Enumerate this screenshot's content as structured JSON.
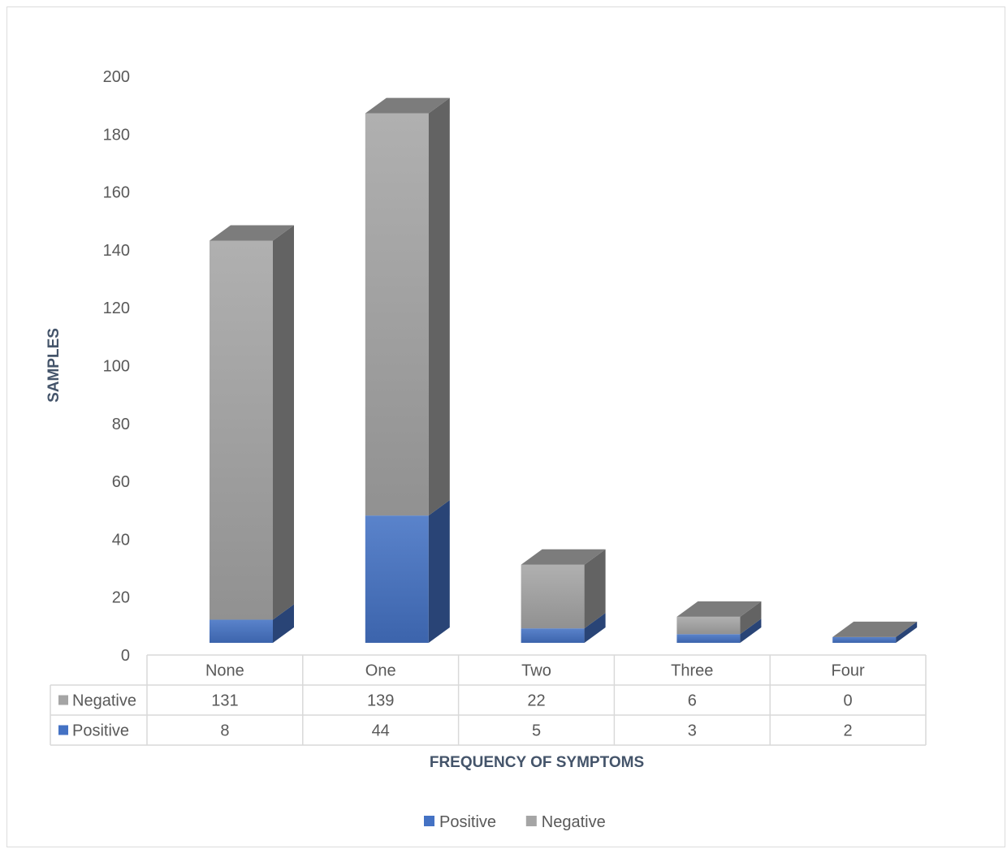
{
  "chart_data": {
    "type": "bar",
    "stacked": true,
    "style": "3d-column",
    "categories": [
      "None",
      "One",
      "Two",
      "Three",
      "Four"
    ],
    "series": [
      {
        "name": "Positive",
        "values": [
          8,
          44,
          5,
          3,
          2
        ],
        "color": "#4472c4"
      },
      {
        "name": "Negative",
        "values": [
          131,
          139,
          22,
          6,
          0
        ],
        "color": "#a5a5a5"
      }
    ],
    "xlabel": "FREQUENCY OF SYMPTOMS",
    "ylabel": "SAMPLES",
    "ylim": [
      0,
      200
    ],
    "yticks": [
      0,
      20,
      40,
      60,
      80,
      100,
      120,
      140,
      160,
      180,
      200
    ],
    "data_table": {
      "rows": [
        {
          "label": "Negative",
          "values": [
            "131",
            "139",
            "22",
            "6",
            "0"
          ]
        },
        {
          "label": "Positive",
          "values": [
            "8",
            "44",
            "5",
            "3",
            "2"
          ]
        }
      ]
    },
    "legend": {
      "position": "bottom",
      "items": [
        "Positive",
        "Negative"
      ]
    },
    "grid": false
  }
}
